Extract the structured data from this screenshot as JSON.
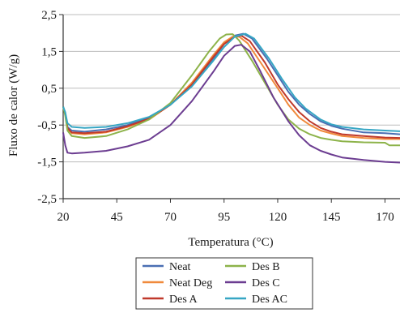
{
  "chart_data": {
    "type": "line",
    "title": "",
    "xlabel": "Temperatura (°C)",
    "ylabel": "Fluxo de calor (W/g)",
    "xlim": [
      20,
      177
    ],
    "ylim": [
      -2.5,
      2.5
    ],
    "x_ticks": [
      20,
      45,
      70,
      95,
      120,
      145,
      170
    ],
    "y_ticks": [
      2.5,
      1.5,
      0.5,
      -0.5,
      -1.5,
      -2.5
    ],
    "x_tick_labels": [
      "20",
      "45",
      "70",
      "95",
      "120",
      "145",
      "170"
    ],
    "y_tick_labels": [
      "2,5",
      "1,5",
      "0,5",
      "-0,5",
      "-1,5",
      "-2,5"
    ],
    "grid": true,
    "legend_position": "bottom",
    "series": [
      {
        "name": "Neat",
        "color": "#4a6fb3",
        "points": [
          [
            20,
            0.0
          ],
          [
            21,
            -0.2
          ],
          [
            22,
            -0.55
          ],
          [
            24,
            -0.65
          ],
          [
            30,
            -0.68
          ],
          [
            40,
            -0.62
          ],
          [
            50,
            -0.5
          ],
          [
            60,
            -0.3
          ],
          [
            70,
            0.05
          ],
          [
            80,
            0.6
          ],
          [
            90,
            1.3
          ],
          [
            95,
            1.7
          ],
          [
            100,
            1.93
          ],
          [
            104,
            1.98
          ],
          [
            108,
            1.85
          ],
          [
            115,
            1.3
          ],
          [
            120,
            0.85
          ],
          [
            125,
            0.4
          ],
          [
            130,
            0.05
          ],
          [
            135,
            -0.2
          ],
          [
            140,
            -0.4
          ],
          [
            145,
            -0.52
          ],
          [
            150,
            -0.6
          ],
          [
            160,
            -0.7
          ],
          [
            170,
            -0.72
          ],
          [
            177,
            -0.75
          ]
        ]
      },
      {
        "name": "Neat Deg",
        "color": "#f08a3c",
        "points": [
          [
            20,
            0.0
          ],
          [
            21,
            -0.2
          ],
          [
            22,
            -0.6
          ],
          [
            24,
            -0.72
          ],
          [
            30,
            -0.75
          ],
          [
            40,
            -0.7
          ],
          [
            50,
            -0.55
          ],
          [
            60,
            -0.35
          ],
          [
            70,
            0.05
          ],
          [
            80,
            0.65
          ],
          [
            90,
            1.4
          ],
          [
            95,
            1.75
          ],
          [
            99,
            1.9
          ],
          [
            102,
            1.9
          ],
          [
            106,
            1.72
          ],
          [
            112,
            1.2
          ],
          [
            120,
            0.5
          ],
          [
            125,
            0.05
          ],
          [
            130,
            -0.3
          ],
          [
            135,
            -0.5
          ],
          [
            140,
            -0.65
          ],
          [
            145,
            -0.73
          ],
          [
            150,
            -0.8
          ],
          [
            160,
            -0.85
          ],
          [
            170,
            -0.88
          ],
          [
            177,
            -0.88
          ]
        ]
      },
      {
        "name": "Des A",
        "color": "#c0392b",
        "points": [
          [
            20,
            0.0
          ],
          [
            21,
            -0.2
          ],
          [
            22,
            -0.58
          ],
          [
            24,
            -0.7
          ],
          [
            30,
            -0.72
          ],
          [
            40,
            -0.68
          ],
          [
            50,
            -0.53
          ],
          [
            60,
            -0.33
          ],
          [
            70,
            0.05
          ],
          [
            80,
            0.6
          ],
          [
            90,
            1.35
          ],
          [
            95,
            1.7
          ],
          [
            100,
            1.9
          ],
          [
            103,
            1.93
          ],
          [
            107,
            1.78
          ],
          [
            114,
            1.2
          ],
          [
            120,
            0.6
          ],
          [
            125,
            0.2
          ],
          [
            130,
            -0.15
          ],
          [
            135,
            -0.4
          ],
          [
            140,
            -0.58
          ],
          [
            145,
            -0.68
          ],
          [
            150,
            -0.75
          ],
          [
            160,
            -0.8
          ],
          [
            170,
            -0.84
          ],
          [
            177,
            -0.85
          ]
        ]
      },
      {
        "name": "Des B",
        "color": "#8db34a",
        "points": [
          [
            20,
            0.0
          ],
          [
            21,
            -0.25
          ],
          [
            22,
            -0.65
          ],
          [
            24,
            -0.8
          ],
          [
            30,
            -0.85
          ],
          [
            40,
            -0.8
          ],
          [
            50,
            -0.62
          ],
          [
            60,
            -0.35
          ],
          [
            70,
            0.1
          ],
          [
            80,
            0.85
          ],
          [
            88,
            1.5
          ],
          [
            93,
            1.85
          ],
          [
            96,
            1.96
          ],
          [
            99,
            1.97
          ],
          [
            102,
            1.8
          ],
          [
            108,
            1.25
          ],
          [
            115,
            0.55
          ],
          [
            120,
            0.05
          ],
          [
            125,
            -0.35
          ],
          [
            130,
            -0.6
          ],
          [
            135,
            -0.75
          ],
          [
            140,
            -0.85
          ],
          [
            145,
            -0.9
          ],
          [
            150,
            -0.94
          ],
          [
            160,
            -0.97
          ],
          [
            170,
            -0.98
          ],
          [
            172,
            -1.05
          ],
          [
            177,
            -1.05
          ]
        ]
      },
      {
        "name": "Des C",
        "color": "#6c3d91",
        "points": [
          [
            20,
            -0.7
          ],
          [
            21,
            -1.05
          ],
          [
            22,
            -1.25
          ],
          [
            24,
            -1.27
          ],
          [
            30,
            -1.25
          ],
          [
            40,
            -1.2
          ],
          [
            50,
            -1.08
          ],
          [
            60,
            -0.9
          ],
          [
            70,
            -0.5
          ],
          [
            80,
            0.15
          ],
          [
            90,
            0.95
          ],
          [
            95,
            1.38
          ],
          [
            100,
            1.65
          ],
          [
            103,
            1.68
          ],
          [
            107,
            1.5
          ],
          [
            112,
            0.95
          ],
          [
            118,
            0.25
          ],
          [
            125,
            -0.4
          ],
          [
            130,
            -0.78
          ],
          [
            135,
            -1.05
          ],
          [
            140,
            -1.2
          ],
          [
            145,
            -1.3
          ],
          [
            150,
            -1.38
          ],
          [
            160,
            -1.45
          ],
          [
            170,
            -1.5
          ],
          [
            177,
            -1.52
          ]
        ]
      },
      {
        "name": "Des AC",
        "color": "#36a6c4",
        "points": [
          [
            20,
            0.0
          ],
          [
            21,
            -0.15
          ],
          [
            22,
            -0.45
          ],
          [
            24,
            -0.55
          ],
          [
            30,
            -0.58
          ],
          [
            40,
            -0.55
          ],
          [
            50,
            -0.45
          ],
          [
            60,
            -0.28
          ],
          [
            70,
            0.05
          ],
          [
            80,
            0.55
          ],
          [
            90,
            1.25
          ],
          [
            95,
            1.62
          ],
          [
            100,
            1.9
          ],
          [
            105,
            1.98
          ],
          [
            109,
            1.85
          ],
          [
            116,
            1.3
          ],
          [
            122,
            0.75
          ],
          [
            128,
            0.25
          ],
          [
            133,
            -0.05
          ],
          [
            140,
            -0.35
          ],
          [
            145,
            -0.48
          ],
          [
            150,
            -0.55
          ],
          [
            160,
            -0.62
          ],
          [
            170,
            -0.65
          ],
          [
            177,
            -0.67
          ]
        ]
      }
    ]
  }
}
